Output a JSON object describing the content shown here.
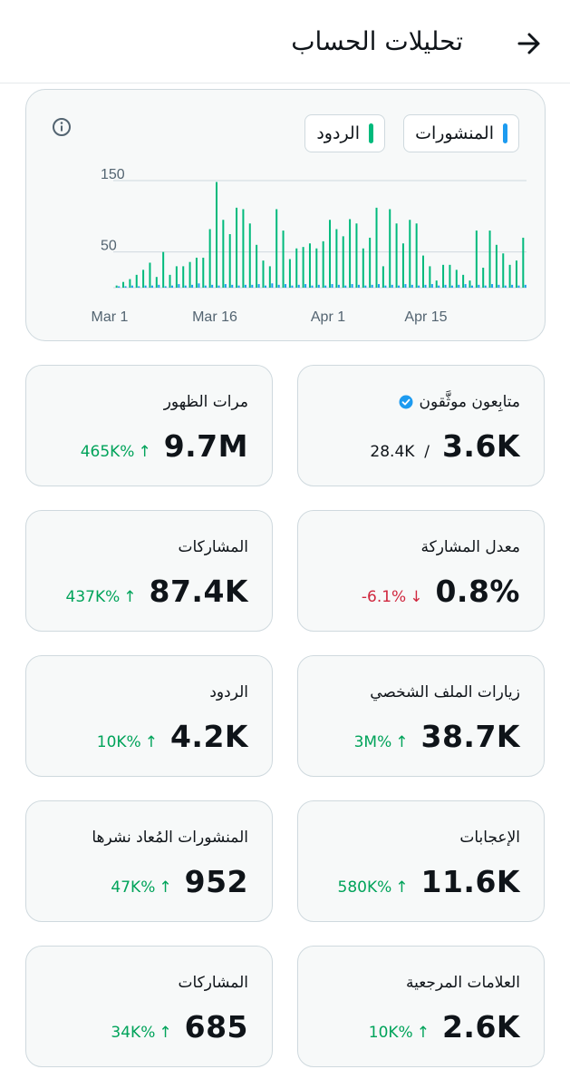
{
  "header": {
    "title": "تحليلات الحساب",
    "back_icon": "arrow-right-icon"
  },
  "chart": {
    "legend": [
      {
        "label": "المنشورات",
        "color": "#1d9bf0"
      },
      {
        "label": "الردود",
        "color": "#00ba7c"
      }
    ],
    "info_icon": "info-icon"
  },
  "chart_data": {
    "type": "bar",
    "xlabel": "",
    "ylabel": "",
    "y_ticks": [
      "150",
      "50"
    ],
    "x_ticks": [
      "Mar 1",
      "Mar 16",
      "Apr 1",
      "Apr 15"
    ],
    "ylim": [
      0,
      160
    ],
    "grid": true,
    "series": [
      {
        "name": "المنشورات",
        "color": "#1d9bf0",
        "values": [
          2,
          2,
          3,
          2,
          3,
          3,
          4,
          2,
          3,
          5,
          3,
          4,
          6,
          3,
          4,
          3,
          5,
          4,
          3,
          4,
          4,
          5,
          3,
          6,
          4,
          5,
          3,
          4,
          5,
          3,
          4,
          3,
          5,
          4,
          3,
          5,
          4,
          3,
          4,
          5,
          3,
          4,
          3,
          5,
          4,
          3,
          4,
          5,
          3,
          4,
          3,
          4,
          5,
          3,
          4,
          3,
          5,
          4,
          3,
          4,
          3,
          4
        ]
      },
      {
        "name": "الردود",
        "color": "#00ba7c",
        "values": [
          3,
          8,
          12,
          18,
          25,
          35,
          15,
          50,
          18,
          30,
          30,
          36,
          42,
          42,
          82,
          148,
          95,
          75,
          112,
          110,
          90,
          60,
          38,
          30,
          110,
          80,
          40,
          55,
          57,
          62,
          55,
          65,
          95,
          82,
          72,
          96,
          90,
          55,
          70,
          112,
          30,
          110,
          90,
          62,
          95,
          90,
          45,
          30,
          10,
          32,
          32,
          25,
          18,
          10,
          80,
          28,
          80,
          60,
          48,
          32,
          38,
          70
        ]
      }
    ]
  },
  "stats": [
    {
      "title": "مرات الظهور",
      "value": "9.7M",
      "change": "465K%",
      "direction": "up"
    },
    {
      "title": "متابِعون موثَّقون",
      "value": "3.6K",
      "secondary": "28.4K",
      "verified": true
    },
    {
      "title": "المشاركات",
      "value": "87.4K",
      "change": "437K%",
      "direction": "up"
    },
    {
      "title": "معدل المشاركة",
      "value": "0.8%",
      "change": "-6.1%",
      "direction": "down"
    },
    {
      "title": "الردود",
      "value": "4.2K",
      "change": "10K%",
      "direction": "up"
    },
    {
      "title": "زيارات الملف الشخصي",
      "value": "38.7K",
      "change": "3M%",
      "direction": "up"
    },
    {
      "title": "المنشورات المُعاد نشرها",
      "value": "952",
      "change": "47K%",
      "direction": "up"
    },
    {
      "title": "الإعجابات",
      "value": "11.6K",
      "change": "580K%",
      "direction": "up"
    },
    {
      "title": "المشاركات",
      "value": "685",
      "change": "34K%",
      "direction": "up"
    },
    {
      "title": "العلامات المرجعية",
      "value": "2.6K",
      "change": "10K%",
      "direction": "up"
    }
  ]
}
